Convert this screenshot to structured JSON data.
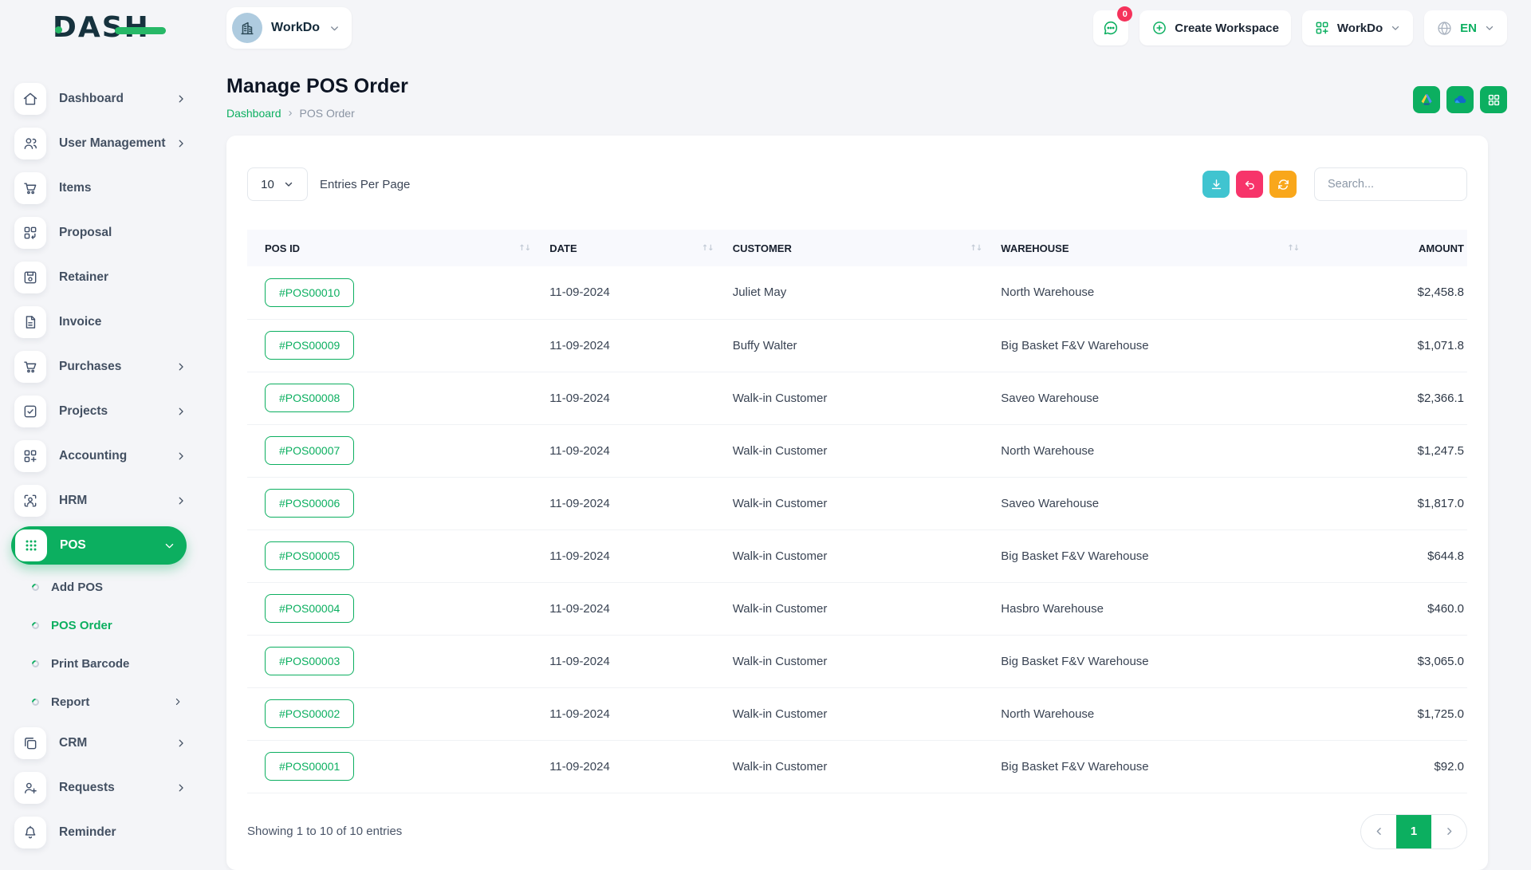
{
  "colors": {
    "primary": "#0caf60",
    "logo_green": "#27b867",
    "teal_button": "#40c4d0",
    "pink_button": "#f7346a",
    "orange_button": "#f9a71b",
    "badge_red": "#f5325b"
  },
  "brand": {
    "logo_text": "DASH"
  },
  "topbar": {
    "workspace_name": "WorkDo",
    "chat_badge": "0",
    "create_workspace_label": "Create Workspace",
    "workspace_menu_label": "WorkDo",
    "language_label": "EN",
    "icons": [
      "chat-icon",
      "plus-circle-icon",
      "grid-plus-icon",
      "globe-icon"
    ]
  },
  "page": {
    "title": "Manage POS Order",
    "breadcrumb": [
      "Dashboard",
      "POS Order"
    ]
  },
  "integrations": [
    "google-drive-icon",
    "onedrive-icon",
    "apps-grid-icon"
  ],
  "sidebar": {
    "items": [
      {
        "label": "Dashboard",
        "icon": "home",
        "chevron": "right"
      },
      {
        "label": "User Management",
        "icon": "users",
        "chevron": "right"
      },
      {
        "label": "Items",
        "icon": "cart"
      },
      {
        "label": "Proposal",
        "icon": "proposal"
      },
      {
        "label": "Retainer",
        "icon": "retainer"
      },
      {
        "label": "Invoice",
        "icon": "invoice"
      },
      {
        "label": "Purchases",
        "icon": "cart",
        "chevron": "right"
      },
      {
        "label": "Projects",
        "icon": "projects",
        "chevron": "right"
      },
      {
        "label": "Accounting",
        "icon": "accounting",
        "chevron": "right"
      },
      {
        "label": "HRM",
        "icon": "hrm",
        "chevron": "right"
      },
      {
        "label": "POS",
        "icon": "pos",
        "chevron": "down",
        "active": true
      },
      {
        "label": "Add POS",
        "sub": true
      },
      {
        "label": "POS Order",
        "sub": true,
        "active": true
      },
      {
        "label": "Print Barcode",
        "sub": true
      },
      {
        "label": "Report",
        "sub": true,
        "chevron": "right"
      },
      {
        "label": "CRM",
        "icon": "crm",
        "chevron": "right"
      },
      {
        "label": "Requests",
        "icon": "requests",
        "chevron": "right"
      },
      {
        "label": "Reminder",
        "icon": "bell"
      }
    ]
  },
  "toolbar": {
    "entries_value": "10",
    "entries_label": "Entries Per Page",
    "search_placeholder": "Search..."
  },
  "table": {
    "columns": [
      "POS ID",
      "DATE",
      "CUSTOMER",
      "WAREHOUSE",
      "AMOUNT"
    ],
    "rows": [
      {
        "pos_id": "#POS00010",
        "date": "11-09-2024",
        "customer": "Juliet May",
        "warehouse": "North Warehouse",
        "amount": "$2,458.8"
      },
      {
        "pos_id": "#POS00009",
        "date": "11-09-2024",
        "customer": "Buffy Walter",
        "warehouse": "Big Basket F&V Warehouse",
        "amount": "$1,071.8"
      },
      {
        "pos_id": "#POS00008",
        "date": "11-09-2024",
        "customer": "Walk-in Customer",
        "warehouse": "Saveo Warehouse",
        "amount": "$2,366.1"
      },
      {
        "pos_id": "#POS00007",
        "date": "11-09-2024",
        "customer": "Walk-in Customer",
        "warehouse": "North Warehouse",
        "amount": "$1,247.5"
      },
      {
        "pos_id": "#POS00006",
        "date": "11-09-2024",
        "customer": "Walk-in Customer",
        "warehouse": "Saveo Warehouse",
        "amount": "$1,817.0"
      },
      {
        "pos_id": "#POS00005",
        "date": "11-09-2024",
        "customer": "Walk-in Customer",
        "warehouse": "Big Basket F&V Warehouse",
        "amount": "$644.8"
      },
      {
        "pos_id": "#POS00004",
        "date": "11-09-2024",
        "customer": "Walk-in Customer",
        "warehouse": "Hasbro Warehouse",
        "amount": "$460.0"
      },
      {
        "pos_id": "#POS00003",
        "date": "11-09-2024",
        "customer": "Walk-in Customer",
        "warehouse": "Big Basket F&V Warehouse",
        "amount": "$3,065.0"
      },
      {
        "pos_id": "#POS00002",
        "date": "11-09-2024",
        "customer": "Walk-in Customer",
        "warehouse": "North Warehouse",
        "amount": "$1,725.0"
      },
      {
        "pos_id": "#POS00001",
        "date": "11-09-2024",
        "customer": "Walk-in Customer",
        "warehouse": "Big Basket F&V Warehouse",
        "amount": "$92.0"
      }
    ]
  },
  "footer": {
    "showing_text": "Showing 1 to 10 of 10 entries",
    "page_number": "1"
  }
}
